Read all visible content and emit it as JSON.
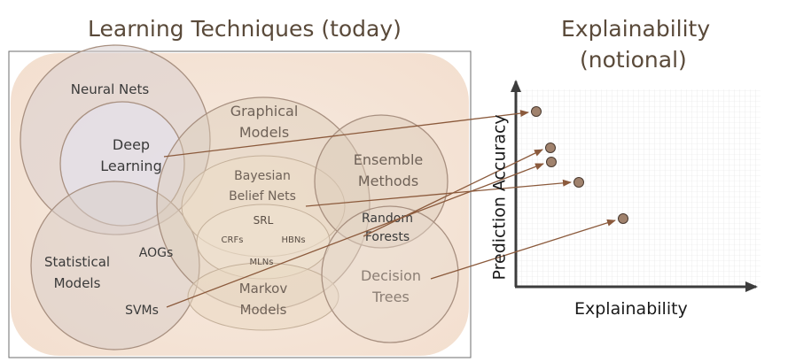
{
  "titles": {
    "left": "Learning Techniques (today)",
    "right_line1": "Explainability",
    "right_line2": "(notional)"
  },
  "techniques": {
    "neural_nets": "Neural Nets",
    "deep_learning_1": "Deep",
    "deep_learning_2": "Learning",
    "graphical_models_1": "Graphical",
    "graphical_models_2": "Models",
    "bayesian_1": "Bayesian",
    "bayesian_2": "Belief Nets",
    "srl": "SRL",
    "crfs": "CRFs",
    "hbns": "HBNs",
    "mlns": "MLNs",
    "ensemble_1": "Ensemble",
    "ensemble_2": "Methods",
    "random_forests_1": "Random",
    "random_forests_2": "Forests",
    "statistical_1": "Statistical",
    "statistical_2": "Models",
    "aogs": "AOGs",
    "svms": "SVMs",
    "markov_1": "Markov",
    "markov_2": "Models",
    "decision_trees_1": "Decision",
    "decision_trees_2": "Trees"
  },
  "axes": {
    "x_label": "Explainability",
    "y_label": "Prediction Accuracy"
  },
  "colors": {
    "title": "#5a4a3a",
    "arrow": "#8b5a3c",
    "point_fill": "#a0826d",
    "circle_stroke": "#a89080",
    "background_fill": "#f5e6da"
  }
}
